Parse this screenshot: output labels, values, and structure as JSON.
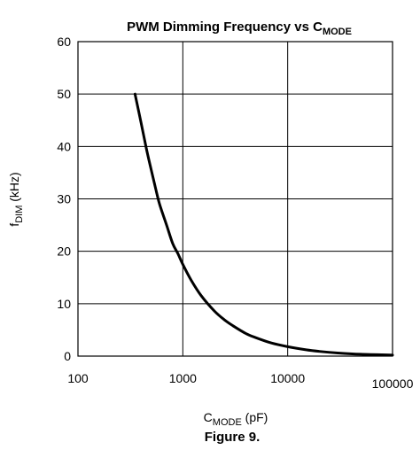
{
  "chart_data": {
    "type": "line",
    "title": {
      "main": "PWM Dimming Frequency vs C",
      "sub": "MODE"
    },
    "xlabel": {
      "main": "C",
      "sub": "MODE",
      "unit": " (pF)"
    },
    "ylabel": {
      "main": "f",
      "sub": "DIM",
      "unit": " (kHz)"
    },
    "x_scale": "log",
    "xlim": [
      100,
      100000
    ],
    "ylim": [
      0,
      60
    ],
    "x_ticks": [
      "100",
      "1000",
      "10000",
      "100000"
    ],
    "y_ticks": [
      "0",
      "10",
      "20",
      "30",
      "40",
      "50",
      "60"
    ],
    "grid": true,
    "series": [
      {
        "color": "#000000",
        "x": [
          350,
          400,
          450,
          500,
          550,
          600,
          700,
          800,
          900,
          1000,
          1200,
          1500,
          2000,
          2500,
          3000,
          4000,
          5000,
          7000,
          10000,
          15000,
          20000,
          30000,
          50000,
          100000
        ],
        "y": [
          50,
          44.5,
          39.5,
          35.5,
          32,
          29,
          25,
          21.5,
          19.5,
          17.5,
          14.5,
          11.5,
          8.6,
          6.9,
          5.8,
          4.3,
          3.5,
          2.5,
          1.8,
          1.2,
          0.9,
          0.6,
          0.35,
          0.2
        ]
      }
    ]
  },
  "caption": "Figure 9."
}
